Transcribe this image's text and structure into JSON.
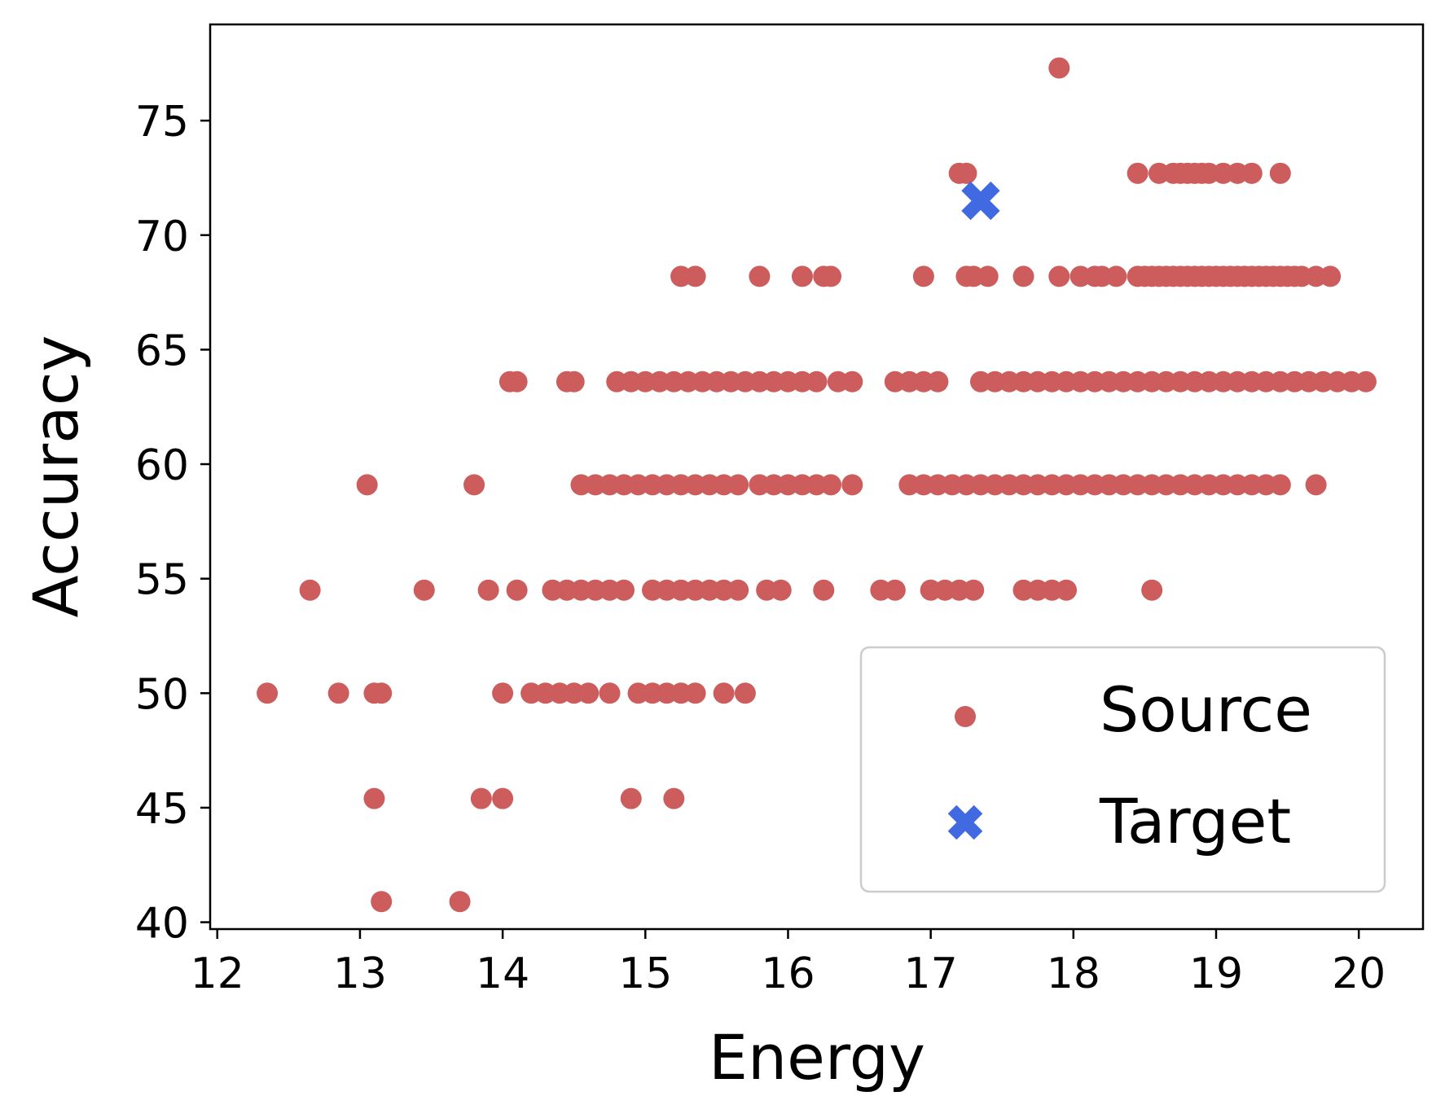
{
  "chart_data": {
    "type": "scatter",
    "xlabel": "Energy",
    "ylabel": "Accuracy",
    "xlim": [
      11.95,
      20.45
    ],
    "ylim": [
      39.7,
      79.2
    ],
    "xticks": [
      12,
      13,
      14,
      15,
      16,
      17,
      18,
      19,
      20
    ],
    "yticks": [
      40,
      45,
      50,
      55,
      60,
      65,
      70,
      75
    ],
    "legend_position": "lower right",
    "grid": false,
    "series": [
      {
        "name": "Source",
        "marker": "circle",
        "color": "#cd5c5c",
        "points": [
          [
            17.9,
            77.3
          ],
          [
            17.2,
            72.7
          ],
          [
            17.25,
            72.7
          ],
          [
            18.45,
            72.7
          ],
          [
            18.6,
            72.7
          ],
          [
            18.7,
            72.7
          ],
          [
            18.75,
            72.7
          ],
          [
            18.8,
            72.7
          ],
          [
            18.85,
            72.7
          ],
          [
            18.9,
            72.7
          ],
          [
            18.95,
            72.7
          ],
          [
            19.05,
            72.7
          ],
          [
            19.15,
            72.7
          ],
          [
            19.25,
            72.7
          ],
          [
            19.45,
            72.7
          ],
          [
            15.25,
            68.2
          ],
          [
            15.35,
            68.2
          ],
          [
            15.8,
            68.2
          ],
          [
            16.1,
            68.2
          ],
          [
            16.25,
            68.2
          ],
          [
            16.3,
            68.2
          ],
          [
            16.95,
            68.2
          ],
          [
            17.25,
            68.2
          ],
          [
            17.3,
            68.2
          ],
          [
            17.4,
            68.2
          ],
          [
            17.65,
            68.2
          ],
          [
            17.9,
            68.2
          ],
          [
            18.05,
            68.2
          ],
          [
            18.15,
            68.2
          ],
          [
            18.2,
            68.2
          ],
          [
            18.3,
            68.2
          ],
          [
            18.45,
            68.2
          ],
          [
            18.5,
            68.2
          ],
          [
            18.55,
            68.2
          ],
          [
            18.6,
            68.2
          ],
          [
            18.65,
            68.2
          ],
          [
            18.7,
            68.2
          ],
          [
            18.75,
            68.2
          ],
          [
            18.8,
            68.2
          ],
          [
            18.85,
            68.2
          ],
          [
            18.9,
            68.2
          ],
          [
            18.95,
            68.2
          ],
          [
            19.0,
            68.2
          ],
          [
            19.05,
            68.2
          ],
          [
            19.1,
            68.2
          ],
          [
            19.15,
            68.2
          ],
          [
            19.2,
            68.2
          ],
          [
            19.25,
            68.2
          ],
          [
            19.3,
            68.2
          ],
          [
            19.35,
            68.2
          ],
          [
            19.4,
            68.2
          ],
          [
            19.45,
            68.2
          ],
          [
            19.5,
            68.2
          ],
          [
            19.55,
            68.2
          ],
          [
            19.6,
            68.2
          ],
          [
            19.7,
            68.2
          ],
          [
            19.8,
            68.2
          ],
          [
            14.05,
            63.6
          ],
          [
            14.1,
            63.6
          ],
          [
            14.45,
            63.6
          ],
          [
            14.5,
            63.6
          ],
          [
            14.8,
            63.6
          ],
          [
            14.9,
            63.6
          ],
          [
            15.0,
            63.6
          ],
          [
            15.1,
            63.6
          ],
          [
            15.2,
            63.6
          ],
          [
            15.3,
            63.6
          ],
          [
            15.4,
            63.6
          ],
          [
            15.5,
            63.6
          ],
          [
            15.6,
            63.6
          ],
          [
            15.7,
            63.6
          ],
          [
            15.8,
            63.6
          ],
          [
            15.9,
            63.6
          ],
          [
            16.0,
            63.6
          ],
          [
            16.1,
            63.6
          ],
          [
            16.2,
            63.6
          ],
          [
            16.35,
            63.6
          ],
          [
            16.45,
            63.6
          ],
          [
            16.75,
            63.6
          ],
          [
            16.85,
            63.6
          ],
          [
            16.95,
            63.6
          ],
          [
            17.05,
            63.6
          ],
          [
            17.35,
            63.6
          ],
          [
            17.45,
            63.6
          ],
          [
            17.55,
            63.6
          ],
          [
            17.65,
            63.6
          ],
          [
            17.75,
            63.6
          ],
          [
            17.85,
            63.6
          ],
          [
            17.95,
            63.6
          ],
          [
            18.05,
            63.6
          ],
          [
            18.15,
            63.6
          ],
          [
            18.25,
            63.6
          ],
          [
            18.35,
            63.6
          ],
          [
            18.45,
            63.6
          ],
          [
            18.55,
            63.6
          ],
          [
            18.65,
            63.6
          ],
          [
            18.75,
            63.6
          ],
          [
            18.85,
            63.6
          ],
          [
            18.95,
            63.6
          ],
          [
            19.05,
            63.6
          ],
          [
            19.15,
            63.6
          ],
          [
            19.25,
            63.6
          ],
          [
            19.35,
            63.6
          ],
          [
            19.45,
            63.6
          ],
          [
            19.55,
            63.6
          ],
          [
            19.65,
            63.6
          ],
          [
            19.75,
            63.6
          ],
          [
            19.85,
            63.6
          ],
          [
            19.95,
            63.6
          ],
          [
            20.05,
            63.6
          ],
          [
            13.05,
            59.1
          ],
          [
            13.8,
            59.1
          ],
          [
            14.55,
            59.1
          ],
          [
            14.65,
            59.1
          ],
          [
            14.75,
            59.1
          ],
          [
            14.85,
            59.1
          ],
          [
            14.95,
            59.1
          ],
          [
            15.05,
            59.1
          ],
          [
            15.15,
            59.1
          ],
          [
            15.25,
            59.1
          ],
          [
            15.35,
            59.1
          ],
          [
            15.45,
            59.1
          ],
          [
            15.55,
            59.1
          ],
          [
            15.65,
            59.1
          ],
          [
            15.8,
            59.1
          ],
          [
            15.9,
            59.1
          ],
          [
            16.0,
            59.1
          ],
          [
            16.1,
            59.1
          ],
          [
            16.2,
            59.1
          ],
          [
            16.3,
            59.1
          ],
          [
            16.45,
            59.1
          ],
          [
            16.85,
            59.1
          ],
          [
            16.95,
            59.1
          ],
          [
            17.05,
            59.1
          ],
          [
            17.15,
            59.1
          ],
          [
            17.25,
            59.1
          ],
          [
            17.35,
            59.1
          ],
          [
            17.45,
            59.1
          ],
          [
            17.55,
            59.1
          ],
          [
            17.65,
            59.1
          ],
          [
            17.75,
            59.1
          ],
          [
            17.85,
            59.1
          ],
          [
            17.95,
            59.1
          ],
          [
            18.05,
            59.1
          ],
          [
            18.15,
            59.1
          ],
          [
            18.25,
            59.1
          ],
          [
            18.35,
            59.1
          ],
          [
            18.45,
            59.1
          ],
          [
            18.55,
            59.1
          ],
          [
            18.65,
            59.1
          ],
          [
            18.75,
            59.1
          ],
          [
            18.85,
            59.1
          ],
          [
            18.95,
            59.1
          ],
          [
            19.05,
            59.1
          ],
          [
            19.15,
            59.1
          ],
          [
            19.25,
            59.1
          ],
          [
            19.35,
            59.1
          ],
          [
            19.45,
            59.1
          ],
          [
            19.7,
            59.1
          ],
          [
            12.65,
            54.5
          ],
          [
            13.45,
            54.5
          ],
          [
            13.9,
            54.5
          ],
          [
            14.1,
            54.5
          ],
          [
            14.35,
            54.5
          ],
          [
            14.45,
            54.5
          ],
          [
            14.55,
            54.5
          ],
          [
            14.65,
            54.5
          ],
          [
            14.75,
            54.5
          ],
          [
            14.85,
            54.5
          ],
          [
            15.05,
            54.5
          ],
          [
            15.15,
            54.5
          ],
          [
            15.25,
            54.5
          ],
          [
            15.35,
            54.5
          ],
          [
            15.45,
            54.5
          ],
          [
            15.55,
            54.5
          ],
          [
            15.65,
            54.5
          ],
          [
            15.85,
            54.5
          ],
          [
            15.95,
            54.5
          ],
          [
            16.25,
            54.5
          ],
          [
            16.65,
            54.5
          ],
          [
            16.75,
            54.5
          ],
          [
            17.0,
            54.5
          ],
          [
            17.1,
            54.5
          ],
          [
            17.2,
            54.5
          ],
          [
            17.3,
            54.5
          ],
          [
            17.65,
            54.5
          ],
          [
            17.75,
            54.5
          ],
          [
            17.85,
            54.5
          ],
          [
            17.95,
            54.5
          ],
          [
            18.55,
            54.5
          ],
          [
            12.35,
            50.0
          ],
          [
            12.85,
            50.0
          ],
          [
            13.1,
            50.0
          ],
          [
            13.15,
            50.0
          ],
          [
            14.0,
            50.0
          ],
          [
            14.2,
            50.0
          ],
          [
            14.3,
            50.0
          ],
          [
            14.4,
            50.0
          ],
          [
            14.5,
            50.0
          ],
          [
            14.6,
            50.0
          ],
          [
            14.75,
            50.0
          ],
          [
            14.95,
            50.0
          ],
          [
            15.05,
            50.0
          ],
          [
            15.15,
            50.0
          ],
          [
            15.25,
            50.0
          ],
          [
            15.35,
            50.0
          ],
          [
            15.55,
            50.0
          ],
          [
            15.7,
            50.0
          ],
          [
            13.1,
            45.4
          ],
          [
            13.85,
            45.4
          ],
          [
            14.0,
            45.4
          ],
          [
            14.9,
            45.4
          ],
          [
            15.2,
            45.4
          ],
          [
            13.15,
            40.9
          ],
          [
            13.7,
            40.9
          ]
        ]
      },
      {
        "name": "Target",
        "marker": "x",
        "color": "#4169e1",
        "points": [
          [
            17.35,
            71.5
          ]
        ]
      }
    ]
  }
}
